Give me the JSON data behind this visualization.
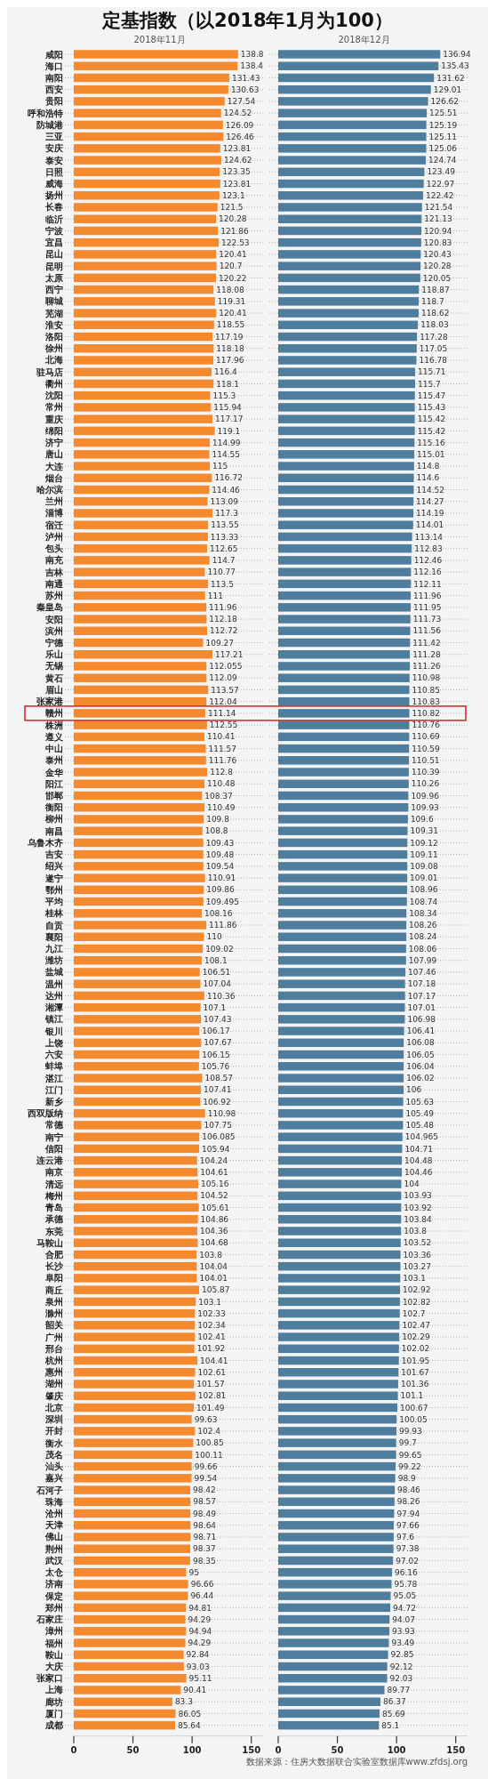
{
  "chart_data": [
    {
      "type": "bar",
      "orientation": "horizontal",
      "title": "定基指数（以2018年1月为100）",
      "subtitle": "2018年11月",
      "categories": [
        "咸阳",
        "海口",
        "南阳",
        "西安",
        "贵阳",
        "呼和浩特",
        "防城港",
        "三亚",
        "安庆",
        "泰安",
        "日照",
        "威海",
        "扬州",
        "长春",
        "临沂",
        "宁波",
        "宜昌",
        "昆山",
        "昆明",
        "太原",
        "西宁",
        "聊城",
        "芜湖",
        "淮安",
        "洛阳",
        "徐州",
        "北海",
        "驻马店",
        "衢州",
        "沈阳",
        "常州",
        "重庆",
        "绵阳",
        "济宁",
        "唐山",
        "大连",
        "烟台",
        "哈尔滨",
        "兰州",
        "淄博",
        "宿迁",
        "泸州",
        "包头",
        "南充",
        "吉林",
        "南通",
        "苏州",
        "秦皇岛",
        "安阳",
        "滨州",
        "宁德",
        "乐山",
        "无锡",
        "黄石",
        "眉山",
        "张家港",
        "赣州",
        "株洲",
        "遵义",
        "中山",
        "泰州",
        "金华",
        "阳江",
        "邯郸",
        "衡阳",
        "柳州",
        "南昌",
        "乌鲁木齐",
        "吉安",
        "绍兴",
        "遂宁",
        "鄂州",
        "平均",
        "桂林",
        "自贡",
        "襄阳",
        "九江",
        "潍坊",
        "盐城",
        "温州",
        "达州",
        "湘潭",
        "镇江",
        "银川",
        "上饶",
        "六安",
        "蚌埠",
        "湛江",
        "江门",
        "新乡",
        "西双版纳",
        "常德",
        "南宁",
        "信阳",
        "连云港",
        "南京",
        "清远",
        "梅州",
        "青岛",
        "承德",
        "东莞",
        "马鞍山",
        "合肥",
        "长沙",
        "阜阳",
        "商丘",
        "泉州",
        "滁州",
        "韶关",
        "广州",
        "邢台",
        "杭州",
        "惠州",
        "湖州",
        "肇庆",
        "北京",
        "深圳",
        "开封",
        "衡水",
        "茂名",
        "汕头",
        "嘉兴",
        "石河子",
        "珠海",
        "沧州",
        "天津",
        "佛山",
        "荆州",
        "武汉",
        "太仓",
        "济南",
        "保定",
        "郑州",
        "石家庄",
        "漳州",
        "福州",
        "鞍山",
        "大庆",
        "张家口",
        "上海",
        "廊坊",
        "厦门",
        "成都"
      ],
      "series": [
        {
          "color": "#f5892e",
          "values": [
            138.8,
            138.4,
            131.43,
            130.63,
            127.54,
            124.52,
            126.09,
            126.46,
            123.81,
            124.62,
            123.35,
            123.81,
            123.1,
            121.5,
            120.28,
            121.86,
            122.53,
            120.41,
            120.7,
            120.22,
            118.08,
            119.31,
            120.41,
            118.55,
            117.19,
            118.18,
            117.96,
            116.4,
            118.1,
            115.3,
            115.94,
            117.17,
            119.1,
            114.99,
            114.55,
            115,
            116.72,
            114.46,
            113.09,
            117.3,
            113.55,
            113.33,
            112.65,
            114.7,
            110.77,
            113.5,
            111,
            111.96,
            112.18,
            112.72,
            109.27,
            117.21,
            112.055,
            112.09,
            113.57,
            112.04,
            111.14,
            112.55,
            110.41,
            111.57,
            111.76,
            112.8,
            110.48,
            108.37,
            110.49,
            109.8,
            108.8,
            109.43,
            109.48,
            109.54,
            110.91,
            109.86,
            109.495,
            108.16,
            111.86,
            110,
            109.02,
            108.1,
            106.51,
            107.04,
            110.36,
            107.1,
            107.43,
            106.17,
            107.67,
            106.15,
            105.76,
            108.57,
            107.41,
            106.92,
            110.98,
            107.75,
            106.085,
            105.94,
            104.24,
            104.61,
            105.16,
            104.52,
            105.61,
            104.86,
            104.36,
            104.68,
            103.8,
            104.04,
            104.01,
            105.87,
            103.1,
            102.33,
            102.34,
            102.41,
            101.92,
            104.41,
            102.61,
            101.57,
            102.81,
            101.49,
            99.63,
            102.4,
            100.85,
            100.11,
            99.66,
            99.54,
            98.42,
            98.57,
            98.49,
            98.64,
            98.71,
            98.37,
            98.35,
            95,
            96.66,
            96.44,
            94.81,
            94.29,
            94.94,
            94.29,
            92.84,
            93.03,
            95.11,
            90.41,
            83.3,
            86.05,
            85.64
          ]
        }
      ],
      "xlim": [
        0,
        160
      ],
      "xticks": [
        0,
        50,
        100,
        150
      ],
      "grid": "y",
      "data_labels": true
    },
    {
      "type": "bar",
      "orientation": "horizontal",
      "subtitle": "2018年12月",
      "categories": [
        null,
        null,
        null,
        null,
        null,
        null,
        null,
        null,
        null,
        null,
        null,
        null,
        null,
        null,
        null,
        null,
        null,
        null,
        null,
        null,
        null,
        null,
        null,
        null,
        null,
        null,
        null,
        null,
        null,
        null,
        null,
        null,
        null,
        null,
        null,
        null,
        null,
        null,
        null,
        null,
        null,
        null,
        null,
        null,
        null,
        null,
        null,
        null,
        null,
        null,
        null,
        null,
        null,
        null,
        null,
        null,
        null,
        null,
        null,
        null,
        null,
        null,
        null,
        null,
        null,
        null,
        null,
        null,
        null,
        null,
        null,
        null,
        null,
        null,
        null,
        null,
        null,
        null,
        null,
        null,
        null,
        null,
        null,
        null,
        null,
        null,
        null,
        null,
        null,
        null,
        null,
        null,
        null,
        null,
        null,
        null,
        null,
        null,
        null,
        null,
        null,
        null,
        null,
        null,
        null,
        null,
        null,
        null,
        null,
        null,
        null,
        null,
        null,
        null,
        null,
        null,
        null,
        null,
        null,
        null,
        null,
        null,
        null,
        null,
        null,
        null,
        null,
        null,
        null,
        null,
        null,
        null,
        null,
        null,
        null,
        null,
        null,
        null,
        null,
        null,
        null,
        null,
        null
      ],
      "series": [
        {
          "color": "#4f7d9e",
          "values": [
            136.94,
            135.43,
            131.62,
            129.01,
            126.62,
            125.51,
            125.19,
            125.11,
            125.06,
            124.74,
            123.49,
            122.97,
            122.42,
            121.54,
            121.13,
            120.94,
            120.83,
            120.43,
            120.28,
            120.05,
            118.87,
            118.7,
            118.62,
            118.03,
            117.28,
            117.05,
            116.78,
            115.71,
            115.7,
            115.47,
            115.43,
            115.42,
            115.42,
            115.16,
            115.01,
            114.8,
            114.6,
            114.52,
            114.27,
            114.19,
            114.01,
            113.14,
            112.83,
            112.46,
            112.16,
            112.11,
            111.96,
            111.95,
            111.73,
            111.56,
            111.42,
            111.28,
            111.26,
            110.98,
            110.85,
            110.83,
            110.82,
            110.76,
            110.69,
            110.59,
            110.51,
            110.39,
            110.26,
            109.96,
            109.93,
            109.6,
            109.31,
            109.12,
            109.11,
            109.08,
            109.01,
            108.96,
            108.74,
            108.34,
            108.26,
            108.24,
            108.06,
            107.99,
            107.46,
            107.18,
            107.17,
            107.01,
            106.98,
            106.41,
            106.08,
            106.05,
            106.04,
            106.02,
            106,
            105.63,
            105.49,
            105.48,
            104.965,
            104.71,
            104.48,
            104.46,
            104,
            103.93,
            103.92,
            103.84,
            103.8,
            103.52,
            103.36,
            103.27,
            103.1,
            102.92,
            102.82,
            102.7,
            102.47,
            102.29,
            102.02,
            101.95,
            101.67,
            101.36,
            101.1,
            100.67,
            100.05,
            99.93,
            99.7,
            99.65,
            99.22,
            98.9,
            98.46,
            98.26,
            97.94,
            97.66,
            97.6,
            97.38,
            97.02,
            96.16,
            95.78,
            95.05,
            94.72,
            94.07,
            93.93,
            93.49,
            92.85,
            92.12,
            92.03,
            89.77,
            86.37,
            85.69,
            85.1
          ]
        }
      ],
      "xlim": [
        0,
        160
      ],
      "xticks": [
        0,
        50,
        100,
        150
      ],
      "grid": "y",
      "data_labels": true,
      "annotations": [
        "数据来源：住房大数据联合实验室数据库www.zfdsj.org"
      ]
    }
  ]
}
